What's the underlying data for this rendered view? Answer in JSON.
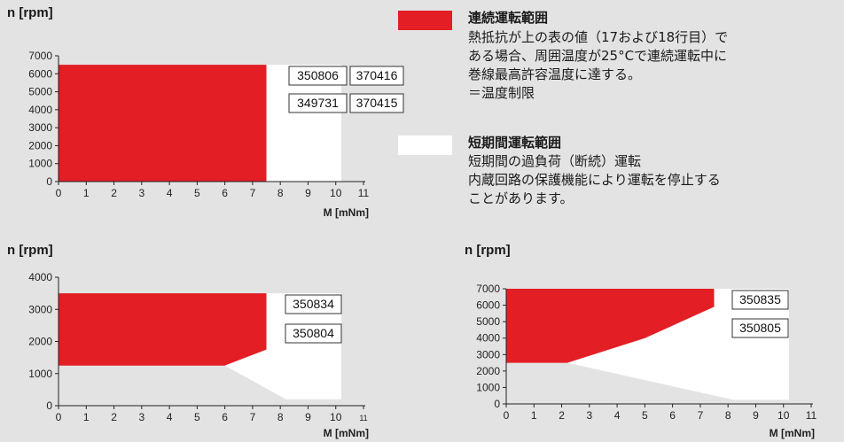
{
  "colors": {
    "continuous": "#e31e24",
    "short": "#ffffff",
    "background": "#e3e3e3",
    "box_border": "#333333"
  },
  "legend": {
    "continuous": {
      "title": "連続運転範囲",
      "lines": [
        "熱抵抗が上の表の値（17および18行目）で",
        "ある場合、周囲温度が25°Cで連続運転中に",
        "巻線最高許容温度に達する。",
        "＝温度制限"
      ]
    },
    "short": {
      "title": "短期間運転範囲",
      "lines": [
        "短期間の過負荷（断続）運転",
        "内蔵回路の保護機能により運転を停止する",
        "ことがあります。"
      ]
    }
  },
  "chart_data": [
    {
      "type": "area",
      "ylabel": "n [rpm]",
      "xlabel": "M [mNm]",
      "xlim": [
        0,
        11
      ],
      "ylim": [
        0,
        7000
      ],
      "xticks": [
        "0",
        "1",
        "2",
        "3",
        "4",
        "5",
        "6",
        "7",
        "8",
        "9",
        "10",
        "11"
      ],
      "yticks": [
        "0",
        "1000",
        "2000",
        "3000",
        "4000",
        "5000",
        "6000",
        "7000"
      ],
      "regions": {
        "continuous": [
          [
            0,
            0
          ],
          [
            7.5,
            0
          ],
          [
            7.5,
            6500
          ],
          [
            0,
            6500
          ]
        ],
        "short": [
          [
            7.5,
            0
          ],
          [
            10.2,
            0
          ],
          [
            10.2,
            6500
          ],
          [
            7.5,
            6500
          ]
        ]
      },
      "boxes": [
        "350806",
        "370416",
        "349731",
        "370415"
      ]
    },
    {
      "type": "area",
      "ylabel": "n [rpm]",
      "xlabel": "M [mNm]",
      "xlim": [
        0,
        11
      ],
      "ylim": [
        0,
        4000
      ],
      "xticks": [
        "0",
        "1",
        "2",
        "3",
        "4",
        "5",
        "6",
        "7",
        "8",
        "9",
        "10",
        "11"
      ],
      "yticks": [
        "0",
        "1000",
        "2000",
        "3000",
        "4000"
      ],
      "regions": {
        "continuous": [
          [
            0,
            1250
          ],
          [
            6,
            1250
          ],
          [
            7.5,
            1750
          ],
          [
            7.5,
            3500
          ],
          [
            0,
            3500
          ]
        ],
        "short": [
          [
            6,
            1250
          ],
          [
            8.2,
            200
          ],
          [
            10.2,
            200
          ],
          [
            10.2,
            3500
          ],
          [
            7.5,
            3500
          ],
          [
            7.5,
            1750
          ]
        ]
      },
      "boxes": [
        "350834",
        "350804"
      ]
    },
    {
      "type": "area",
      "ylabel": "n [rpm]",
      "xlabel": "M [mNm]",
      "xlim": [
        0,
        11
      ],
      "ylim": [
        0,
        7000
      ],
      "xticks": [
        "0",
        "1",
        "2",
        "3",
        "4",
        "5",
        "6",
        "7",
        "8",
        "9",
        "10",
        "11"
      ],
      "yticks": [
        "0",
        "1000",
        "2000",
        "3000",
        "4000",
        "5000",
        "6000",
        "7000"
      ],
      "regions": {
        "continuous": [
          [
            0,
            2500
          ],
          [
            2.2,
            2500
          ],
          [
            5,
            4000
          ],
          [
            7.5,
            5900
          ],
          [
            7.5,
            7000
          ],
          [
            0,
            7000
          ]
        ],
        "short": [
          [
            2.2,
            2500
          ],
          [
            8.2,
            250
          ],
          [
            10.2,
            250
          ],
          [
            10.2,
            7000
          ],
          [
            7.5,
            7000
          ],
          [
            7.5,
            5900
          ],
          [
            5,
            4000
          ]
        ]
      },
      "boxes": [
        "350835",
        "350805"
      ]
    }
  ]
}
